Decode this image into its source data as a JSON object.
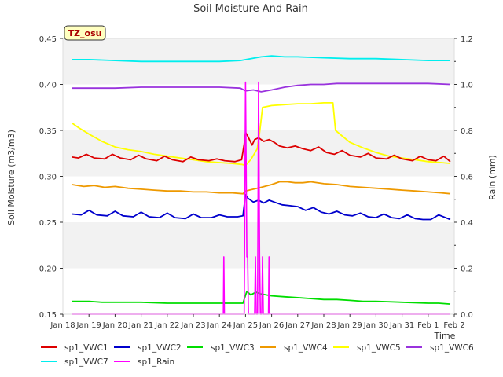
{
  "chart_data": {
    "type": "line",
    "title": "Soil Moisture And Rain",
    "xlabel": "Time",
    "ylabel": "Soil Moisture (m3/m3)",
    "y2label": "Rain (mm)",
    "site_label": "TZ_osu",
    "ylim": [
      0.15,
      0.45
    ],
    "y2lim": [
      0.0,
      1.2
    ],
    "xlim": [
      0,
      15
    ],
    "x_ticks": [
      "Jan 18",
      "Jan 19",
      "Jan 20",
      "Jan 21",
      "Jan 22",
      "Jan 23",
      "Jan 24",
      "Jan 25",
      "Jan 26",
      "Jan 27",
      "Jan 28",
      "Jan 29",
      "Jan 30",
      "Jan 31",
      "Feb 1",
      "Feb 2"
    ],
    "y_ticks": [
      "0.15",
      "0.20",
      "0.25",
      "0.30",
      "0.35",
      "0.40",
      "0.45"
    ],
    "y2_ticks": [
      "0.0",
      "0.2",
      "0.4",
      "0.6",
      "0.8",
      "1.0",
      "1.2"
    ],
    "grid": "horizontal bands",
    "legend_position": "bottom",
    "series": [
      {
        "name": "sp1_VWC1",
        "color": "#dd0000",
        "axis": "left",
        "points": [
          [
            0.35,
            0.321
          ],
          [
            0.6,
            0.32
          ],
          [
            0.9,
            0.324
          ],
          [
            1.2,
            0.32
          ],
          [
            1.6,
            0.319
          ],
          [
            1.9,
            0.324
          ],
          [
            2.2,
            0.32
          ],
          [
            2.6,
            0.318
          ],
          [
            2.9,
            0.323
          ],
          [
            3.2,
            0.319
          ],
          [
            3.6,
            0.317
          ],
          [
            3.9,
            0.322
          ],
          [
            4.2,
            0.318
          ],
          [
            4.6,
            0.316
          ],
          [
            4.9,
            0.321
          ],
          [
            5.2,
            0.318
          ],
          [
            5.6,
            0.317
          ],
          [
            5.9,
            0.319
          ],
          [
            6.2,
            0.317
          ],
          [
            6.6,
            0.316
          ],
          [
            6.85,
            0.318
          ],
          [
            6.95,
            0.335
          ],
          [
            7.0,
            0.348
          ],
          [
            7.1,
            0.343
          ],
          [
            7.25,
            0.334
          ],
          [
            7.35,
            0.34
          ],
          [
            7.5,
            0.342
          ],
          [
            7.7,
            0.338
          ],
          [
            7.9,
            0.34
          ],
          [
            8.1,
            0.337
          ],
          [
            8.3,
            0.333
          ],
          [
            8.6,
            0.331
          ],
          [
            8.9,
            0.333
          ],
          [
            9.2,
            0.33
          ],
          [
            9.5,
            0.328
          ],
          [
            9.8,
            0.332
          ],
          [
            10.1,
            0.326
          ],
          [
            10.4,
            0.324
          ],
          [
            10.7,
            0.328
          ],
          [
            11.0,
            0.323
          ],
          [
            11.4,
            0.321
          ],
          [
            11.7,
            0.325
          ],
          [
            12.0,
            0.32
          ],
          [
            12.4,
            0.319
          ],
          [
            12.7,
            0.323
          ],
          [
            13.0,
            0.319
          ],
          [
            13.4,
            0.317
          ],
          [
            13.7,
            0.322
          ],
          [
            14.0,
            0.318
          ],
          [
            14.3,
            0.317
          ],
          [
            14.6,
            0.322
          ],
          [
            14.85,
            0.316
          ]
        ]
      },
      {
        "name": "sp1_VWC2",
        "color": "#0000cc",
        "axis": "left",
        "points": [
          [
            0.35,
            0.259
          ],
          [
            0.7,
            0.258
          ],
          [
            1.0,
            0.263
          ],
          [
            1.3,
            0.258
          ],
          [
            1.7,
            0.257
          ],
          [
            2.0,
            0.262
          ],
          [
            2.3,
            0.257
          ],
          [
            2.7,
            0.256
          ],
          [
            3.0,
            0.261
          ],
          [
            3.3,
            0.256
          ],
          [
            3.7,
            0.255
          ],
          [
            4.0,
            0.26
          ],
          [
            4.3,
            0.255
          ],
          [
            4.7,
            0.254
          ],
          [
            5.0,
            0.259
          ],
          [
            5.3,
            0.255
          ],
          [
            5.7,
            0.255
          ],
          [
            6.0,
            0.258
          ],
          [
            6.3,
            0.256
          ],
          [
            6.7,
            0.256
          ],
          [
            6.9,
            0.257
          ],
          [
            7.0,
            0.28
          ],
          [
            7.1,
            0.276
          ],
          [
            7.3,
            0.272
          ],
          [
            7.5,
            0.274
          ],
          [
            7.7,
            0.271
          ],
          [
            7.9,
            0.274
          ],
          [
            8.1,
            0.272
          ],
          [
            8.4,
            0.269
          ],
          [
            8.7,
            0.268
          ],
          [
            9.0,
            0.267
          ],
          [
            9.3,
            0.263
          ],
          [
            9.6,
            0.266
          ],
          [
            9.9,
            0.261
          ],
          [
            10.2,
            0.259
          ],
          [
            10.5,
            0.262
          ],
          [
            10.8,
            0.258
          ],
          [
            11.1,
            0.257
          ],
          [
            11.4,
            0.26
          ],
          [
            11.7,
            0.256
          ],
          [
            12.0,
            0.255
          ],
          [
            12.3,
            0.259
          ],
          [
            12.6,
            0.255
          ],
          [
            12.9,
            0.254
          ],
          [
            13.2,
            0.258
          ],
          [
            13.5,
            0.254
          ],
          [
            13.8,
            0.253
          ],
          [
            14.1,
            0.253
          ],
          [
            14.4,
            0.258
          ],
          [
            14.85,
            0.253
          ]
        ]
      },
      {
        "name": "sp1_VWC3",
        "color": "#00dd00",
        "axis": "left",
        "points": [
          [
            0.35,
            0.164
          ],
          [
            1.0,
            0.164
          ],
          [
            1.5,
            0.163
          ],
          [
            2.0,
            0.163
          ],
          [
            3.0,
            0.163
          ],
          [
            4.0,
            0.162
          ],
          [
            5.0,
            0.162
          ],
          [
            6.0,
            0.162
          ],
          [
            6.9,
            0.162
          ],
          [
            7.05,
            0.175
          ],
          [
            7.2,
            0.171
          ],
          [
            7.4,
            0.174
          ],
          [
            7.6,
            0.172
          ],
          [
            8.0,
            0.17
          ],
          [
            8.5,
            0.169
          ],
          [
            9.0,
            0.168
          ],
          [
            9.5,
            0.167
          ],
          [
            10.0,
            0.166
          ],
          [
            10.5,
            0.166
          ],
          [
            11.0,
            0.165
          ],
          [
            11.5,
            0.164
          ],
          [
            12.0,
            0.164
          ],
          [
            13.0,
            0.163
          ],
          [
            14.0,
            0.162
          ],
          [
            14.4,
            0.162
          ],
          [
            14.85,
            0.161
          ]
        ]
      },
      {
        "name": "sp1_VWC4",
        "color": "#ee9900",
        "axis": "left",
        "points": [
          [
            0.35,
            0.291
          ],
          [
            0.8,
            0.289
          ],
          [
            1.2,
            0.29
          ],
          [
            1.6,
            0.288
          ],
          [
            2.0,
            0.289
          ],
          [
            2.5,
            0.287
          ],
          [
            3.0,
            0.286
          ],
          [
            3.5,
            0.285
          ],
          [
            4.0,
            0.284
          ],
          [
            4.5,
            0.284
          ],
          [
            5.0,
            0.283
          ],
          [
            5.5,
            0.283
          ],
          [
            6.0,
            0.282
          ],
          [
            6.5,
            0.282
          ],
          [
            6.9,
            0.281
          ],
          [
            7.0,
            0.284
          ],
          [
            7.3,
            0.286
          ],
          [
            7.6,
            0.288
          ],
          [
            8.0,
            0.291
          ],
          [
            8.3,
            0.294
          ],
          [
            8.6,
            0.294
          ],
          [
            8.9,
            0.293
          ],
          [
            9.2,
            0.293
          ],
          [
            9.5,
            0.294
          ],
          [
            10.0,
            0.292
          ],
          [
            10.5,
            0.291
          ],
          [
            11.0,
            0.289
          ],
          [
            11.5,
            0.288
          ],
          [
            12.0,
            0.287
          ],
          [
            12.5,
            0.286
          ],
          [
            13.0,
            0.285
          ],
          [
            13.5,
            0.284
          ],
          [
            14.0,
            0.283
          ],
          [
            14.5,
            0.282
          ],
          [
            14.85,
            0.281
          ]
        ]
      },
      {
        "name": "sp1_VWC5",
        "color": "#ffff00",
        "axis": "left",
        "points": [
          [
            0.35,
            0.358
          ],
          [
            0.6,
            0.353
          ],
          [
            1.0,
            0.346
          ],
          [
            1.5,
            0.338
          ],
          [
            2.0,
            0.332
          ],
          [
            2.5,
            0.329
          ],
          [
            3.0,
            0.327
          ],
          [
            3.5,
            0.324
          ],
          [
            4.0,
            0.322
          ],
          [
            4.5,
            0.32
          ],
          [
            5.0,
            0.318
          ],
          [
            5.5,
            0.316
          ],
          [
            6.0,
            0.315
          ],
          [
            6.5,
            0.314
          ],
          [
            6.85,
            0.313
          ],
          [
            7.0,
            0.312
          ],
          [
            7.2,
            0.318
          ],
          [
            7.45,
            0.33
          ],
          [
            7.55,
            0.35
          ],
          [
            7.65,
            0.375
          ],
          [
            8.0,
            0.377
          ],
          [
            8.5,
            0.378
          ],
          [
            9.0,
            0.379
          ],
          [
            9.5,
            0.379
          ],
          [
            10.0,
            0.38
          ],
          [
            10.35,
            0.38
          ],
          [
            10.45,
            0.35
          ],
          [
            10.7,
            0.344
          ],
          [
            11.0,
            0.337
          ],
          [
            11.5,
            0.331
          ],
          [
            12.0,
            0.326
          ],
          [
            12.5,
            0.322
          ],
          [
            13.0,
            0.32
          ],
          [
            13.5,
            0.318
          ],
          [
            14.0,
            0.316
          ],
          [
            14.5,
            0.315
          ],
          [
            14.85,
            0.314
          ]
        ]
      },
      {
        "name": "sp1_VWC6",
        "color": "#9933dd",
        "axis": "left",
        "points": [
          [
            0.35,
            0.396
          ],
          [
            1.0,
            0.396
          ],
          [
            2.0,
            0.396
          ],
          [
            3.0,
            0.397
          ],
          [
            4.0,
            0.397
          ],
          [
            5.0,
            0.397
          ],
          [
            6.0,
            0.397
          ],
          [
            6.8,
            0.396
          ],
          [
            7.0,
            0.393
          ],
          [
            7.3,
            0.394
          ],
          [
            7.6,
            0.392
          ],
          [
            8.0,
            0.394
          ],
          [
            8.5,
            0.397
          ],
          [
            9.0,
            0.399
          ],
          [
            9.5,
            0.4
          ],
          [
            10.0,
            0.4
          ],
          [
            10.5,
            0.401
          ],
          [
            11.0,
            0.401
          ],
          [
            12.0,
            0.401
          ],
          [
            13.0,
            0.401
          ],
          [
            14.0,
            0.401
          ],
          [
            14.85,
            0.4
          ]
        ]
      },
      {
        "name": "sp1_VWC7",
        "color": "#00eeee",
        "axis": "left",
        "points": [
          [
            0.35,
            0.427
          ],
          [
            1.0,
            0.427
          ],
          [
            2.0,
            0.426
          ],
          [
            3.0,
            0.425
          ],
          [
            4.0,
            0.425
          ],
          [
            5.0,
            0.425
          ],
          [
            6.0,
            0.425
          ],
          [
            6.8,
            0.426
          ],
          [
            7.2,
            0.428
          ],
          [
            7.6,
            0.43
          ],
          [
            8.0,
            0.431
          ],
          [
            8.5,
            0.43
          ],
          [
            9.0,
            0.43
          ],
          [
            10.0,
            0.429
          ],
          [
            11.0,
            0.428
          ],
          [
            12.0,
            0.428
          ],
          [
            13.0,
            0.427
          ],
          [
            14.0,
            0.426
          ],
          [
            14.85,
            0.426
          ]
        ]
      },
      {
        "name": "sp1_Rain",
        "color": "#ff00ff",
        "axis": "right",
        "points": [
          [
            0.35,
            0.0
          ],
          [
            6.15,
            0.0
          ],
          [
            6.17,
            0.25
          ],
          [
            6.19,
            0.0
          ],
          [
            6.95,
            0.0
          ],
          [
            7.0,
            1.01
          ],
          [
            7.05,
            0.25
          ],
          [
            7.08,
            0.25
          ],
          [
            7.11,
            0.0
          ],
          [
            7.35,
            0.0
          ],
          [
            7.38,
            0.25
          ],
          [
            7.41,
            0.0
          ],
          [
            7.46,
            0.0
          ],
          [
            7.5,
            1.01
          ],
          [
            7.54,
            0.25
          ],
          [
            7.57,
            0.0
          ],
          [
            7.62,
            0.0
          ],
          [
            7.65,
            0.25
          ],
          [
            7.68,
            0.0
          ],
          [
            7.88,
            0.0
          ],
          [
            7.9,
            0.25
          ],
          [
            7.92,
            0.0
          ],
          [
            14.85,
            0.0
          ]
        ]
      }
    ]
  }
}
